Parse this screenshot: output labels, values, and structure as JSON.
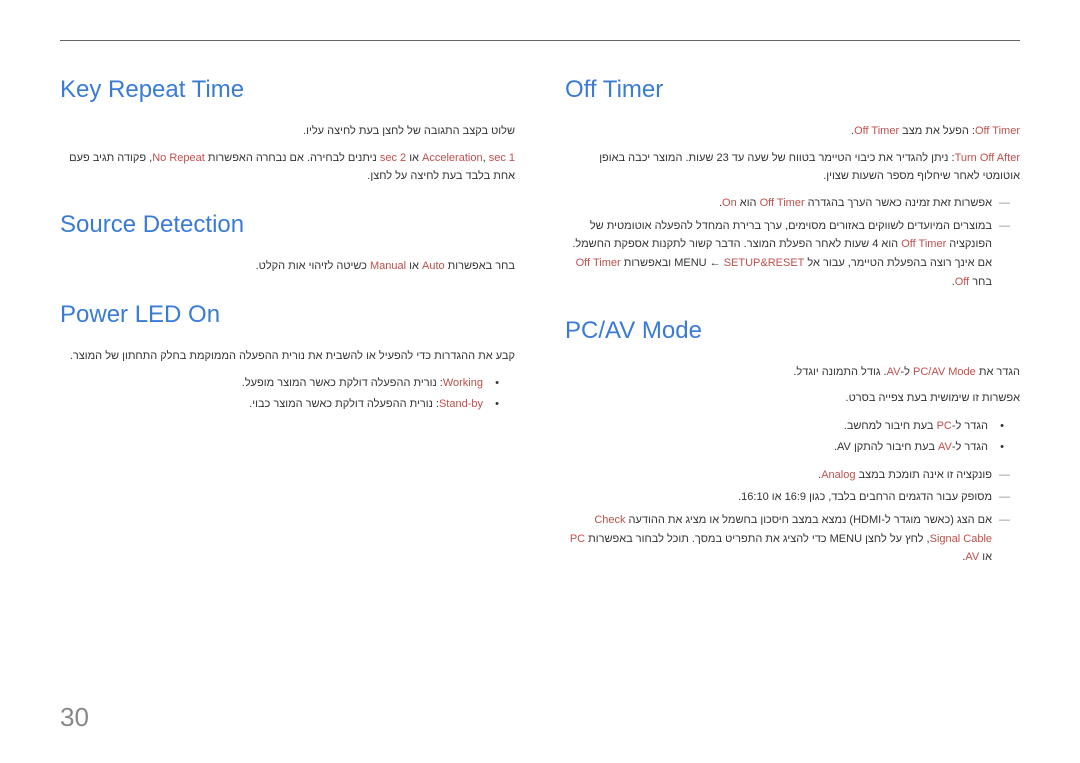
{
  "pageNumber": "30",
  "right": {
    "offTimer": {
      "heading": "Off Timer",
      "p1_a": "Off Timer",
      "p1_b": ": הפעל את מצב ",
      "p1_c": "Off Timer",
      "p1_d": ".",
      "p2_a": "Turn Off After",
      "p2_b": ": ניתן להגדיר את כיבוי הטיימר בטווח של שעה עד 23 שעות. המוצר יכבה באופן אוטומטי לאחר שיחלוף מספר השעות שצוין.",
      "n1_a": "אפשרות זאת זמינה כאשר הערך בהגדרה ",
      "n1_b": "Off Timer",
      "n1_c": " הוא ",
      "n1_d": "On",
      "n1_e": ".",
      "n2_a": "במוצרים המיועדים לשווקים באזורים מסוימים, ערך ברירת המחדל להפעלה אוטומטית של הפונקציה ",
      "n2_b": "Off Timer",
      "n2_c": " הוא 4 שעות לאחר הפעלת המוצר. הדבר קשור לתקנות אספקת החשמל. אם אינך רוצה בהפעלת הטיימר, עבור אל MENU ← ",
      "n2_d": "SETUP&RESET",
      "n2_e": " ובאפשרות ",
      "n2_f": "Off Timer",
      "n2_g": " בחר ",
      "n2_h": "Off",
      "n2_i": "."
    },
    "pcav": {
      "heading": "PC/AV Mode",
      "p1_a": "הגדר את ",
      "p1_b": "PC/AV Mode",
      "p1_c": " ל-",
      "p1_d": "AV",
      "p1_e": ". גודל התמונה יוגדל.",
      "p2": "אפשרות זו שימושית בעת צפייה בסרט.",
      "li1_a": "הגדר ל-",
      "li1_b": "PC",
      "li1_c": " בעת חיבור למחשב.",
      "li2_a": "הגדר ל-",
      "li2_b": "AV",
      "li2_c": " בעת חיבור להתקן AV.",
      "n1_a": "פונקציה זו אינה תומכת במצב ",
      "n1_b": "Analog",
      "n1_c": ".",
      "n2": "מסופק עבור הדגמים הרחבים בלבד, כגון 16:9 או 16:10.",
      "n3_a": "אם הצג (כאשר מוגדר ל-HDMI) נמצא במצב חיסכון בחשמל או מציג את ההודעה ",
      "n3_b": "Check Signal Cable",
      "n3_c": ", לחץ על לחצן MENU כדי להציג את התפריט במסך. תוכל לבחור באפשרות ",
      "n3_d": "PC",
      "n3_e": " או ",
      "n3_f": "AV",
      "n3_g": "."
    }
  },
  "left": {
    "keyRepeat": {
      "heading": "Key Repeat Time",
      "p1": "שלוט בקצב התגובה של לחצן בעת לחיצה עליו.",
      "p2_a": "Acceleration",
      "p2_b": ", ",
      "p2_c": "sec 1",
      "p2_d": " או ",
      "p2_e": "sec 2",
      "p2_f": " ניתנים לבחירה. אם נבחרה האפשרות ",
      "p2_g": "No Repeat",
      "p2_h": ", פקודה תגיב פעם אחת בלבד בעת לחיצה על לחצן."
    },
    "sourceDetection": {
      "heading": "Source Detection",
      "p1_a": "בחר באפשרות ",
      "p1_b": "Auto",
      "p1_c": " או ",
      "p1_d": "Manual",
      "p1_e": " כשיטה לזיהוי אות הקלט."
    },
    "powerLed": {
      "heading": "Power LED On",
      "p1": "קבע את ההגדרות כדי להפעיל או להשבית את נורית ההפעלה הממוקמת בחלק התחתון של המוצר.",
      "li1_a": "Working",
      "li1_b": ": נורית ההפעלה דולקת כאשר המוצר מופעל.",
      "li2_a": "Stand-by",
      "li2_b": ": נורית ההפעלה דולקת כאשר המוצר כבוי."
    }
  }
}
